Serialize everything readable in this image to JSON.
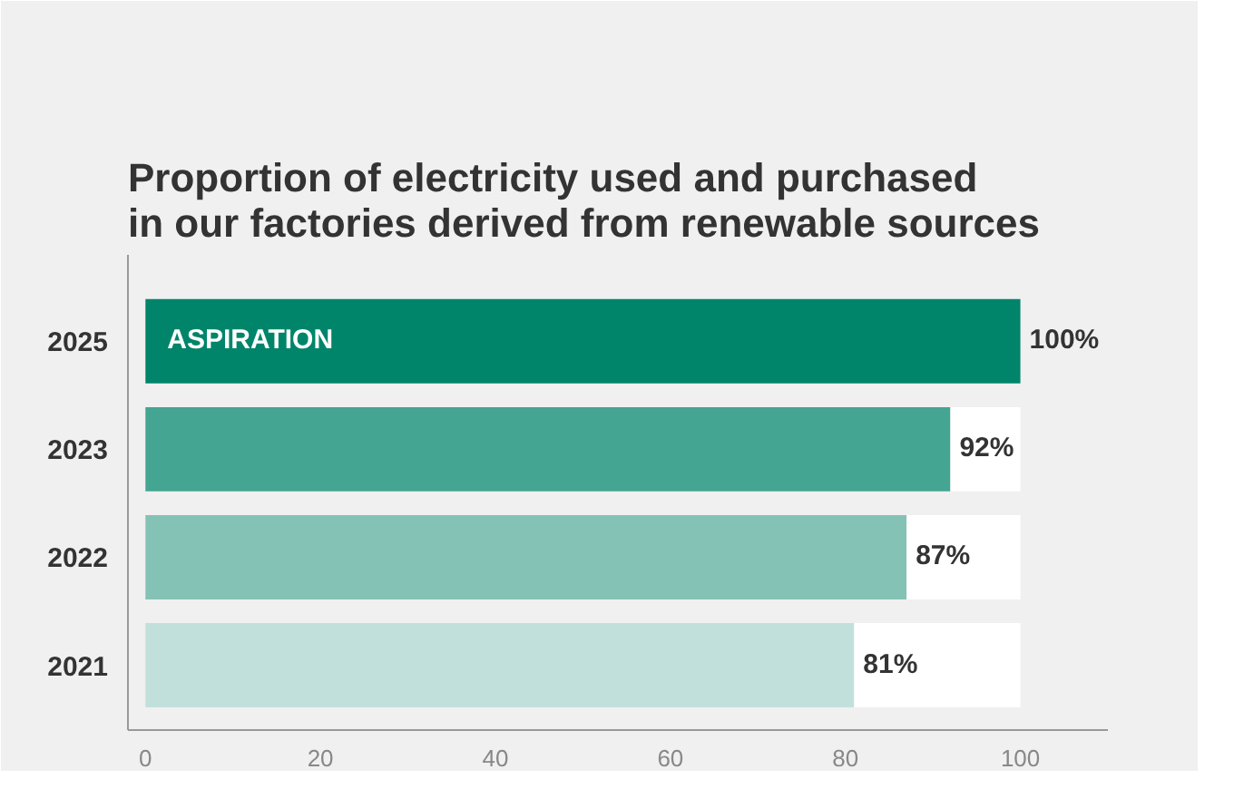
{
  "chart_data": {
    "type": "bar",
    "orientation": "horizontal",
    "stacked": true,
    "title": "Proportion of electricity used and purchased\nin our factories derived from renewable sources",
    "categories": [
      "2025",
      "2023",
      "2022",
      "2021"
    ],
    "series": [
      {
        "color": "#00856a",
        "colors": [
          "#00856a",
          "#43a592",
          "#85c2b6",
          "#c2e0db"
        ],
        "values": [
          100,
          92,
          87,
          81
        ],
        "value_labels": [
          "100%",
          "92%",
          "87%",
          "81%"
        ]
      },
      {
        "color": "#ffffff",
        "values": [
          null,
          8,
          13,
          19
        ]
      }
    ],
    "annotations": [
      "ASPIRATION"
    ],
    "xlim": [
      -2,
      110
    ],
    "xticks": [
      0,
      20,
      40,
      60,
      80,
      100
    ],
    "grid": false
  }
}
